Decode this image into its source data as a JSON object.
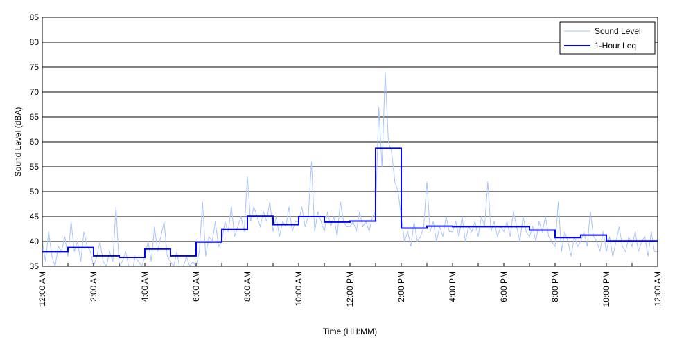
{
  "chart_data": {
    "type": "line",
    "title": "",
    "xlabel": "Time (HH:MM)",
    "ylabel": "Sound Level (dBA)",
    "ylim": [
      35,
      85
    ],
    "yticks": [
      35,
      40,
      45,
      50,
      55,
      60,
      65,
      70,
      75,
      80,
      85
    ],
    "xlim_hours": [
      0,
      24
    ],
    "xtick_labels": [
      "12:00 AM",
      "2:00 AM",
      "4:00 AM",
      "6:00 AM",
      "8:00 AM",
      "10:00 AM",
      "12:00 PM",
      "2:00 PM",
      "4:00 PM",
      "6:00 PM",
      "8:00 PM",
      "10:00 PM",
      "12:00 AM"
    ],
    "grid": "horizontal",
    "legend_position": "top-right",
    "series": [
      {
        "name": "Sound Level",
        "color": "#a9c4fa",
        "samples_per_hour": 8,
        "values": [
          40,
          36,
          42,
          37,
          35,
          39,
          38,
          41,
          37,
          44,
          38,
          40,
          36,
          42,
          39,
          38,
          35,
          37,
          40,
          36,
          35,
          38,
          36,
          47,
          35,
          36,
          38,
          35,
          34,
          37,
          36,
          35,
          37,
          40,
          36,
          43,
          38,
          41,
          44,
          37,
          36,
          35,
          38,
          34,
          35,
          37,
          35,
          36,
          35,
          38,
          48,
          37,
          41,
          40,
          44,
          39,
          40,
          44,
          42,
          47,
          41,
          43,
          45,
          42,
          53,
          44,
          47,
          45,
          43,
          46,
          44,
          48,
          42,
          45,
          41,
          44,
          43,
          47,
          42,
          44,
          44,
          47,
          43,
          45,
          56,
          42,
          46,
          44,
          42,
          46,
          43,
          45,
          41,
          48,
          44,
          43,
          43,
          44,
          42,
          46,
          43,
          44,
          42,
          45,
          46,
          67,
          55,
          74,
          60,
          58,
          52,
          50,
          45,
          40,
          42,
          39,
          44,
          40,
          41,
          43,
          52,
          42,
          44,
          40,
          43,
          41,
          45,
          42,
          42,
          44,
          41,
          45,
          40,
          43,
          42,
          44,
          41,
          45,
          43,
          52,
          42,
          44,
          41,
          43,
          42,
          44,
          41,
          46,
          43,
          40,
          45,
          42,
          41,
          43,
          40,
          44,
          42,
          45,
          41,
          40,
          39,
          48,
          38,
          42,
          40,
          37,
          41,
          39,
          40,
          42,
          39,
          46,
          41,
          40,
          38,
          42,
          38,
          41,
          37,
          40,
          43,
          39,
          38,
          41,
          39,
          42,
          38,
          40,
          41,
          37,
          42,
          38
        ]
      },
      {
        "name": "1-Hour Leq",
        "color": "#0000ff",
        "hourly_values": [
          38.0,
          38.8,
          37.1,
          36.8,
          38.5,
          37.1,
          39.9,
          42.4,
          45.1,
          43.4,
          45.0,
          43.9,
          44.1,
          58.7,
          42.7,
          43.1,
          43.0,
          43.0,
          43.0,
          42.3,
          40.8,
          41.3,
          40.1,
          40.1
        ]
      }
    ]
  }
}
